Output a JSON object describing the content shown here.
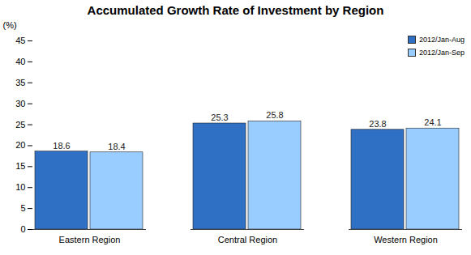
{
  "chart_data": {
    "type": "bar",
    "title": "Accumulated Growth Rate of Investment by Region",
    "y_label": "(%)",
    "categories": [
      "Eastern Region",
      "Central Region",
      "Western Region"
    ],
    "series": [
      {
        "name": "2012/Jan-Aug",
        "color": "#2f6fc4",
        "values": [
          18.6,
          25.3,
          23.8
        ]
      },
      {
        "name": "2012/Jan-Sep",
        "color": "#99ccff",
        "values": [
          18.4,
          25.8,
          24.1
        ]
      }
    ],
    "ylim": [
      0,
      45
    ],
    "yticks": [
      0,
      5,
      10,
      15,
      20,
      25,
      30,
      35,
      40,
      45
    ],
    "grid": false,
    "legend": "top-right",
    "data_labels": true
  }
}
